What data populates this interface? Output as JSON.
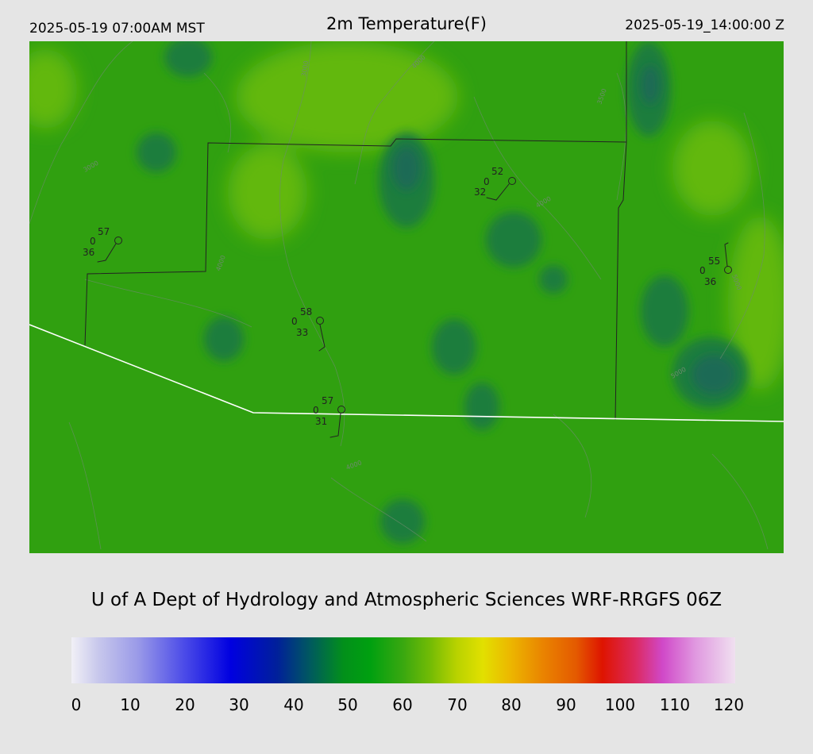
{
  "header": {
    "local_time": "2025-05-19 07:00AM MST",
    "title": "2m Temperature(F)",
    "utc_time": "2025-05-19_14:00:00 Z"
  },
  "credit": "U of A Dept of Hydrology and Atmospheric Sciences WRF-RRGFS 06Z",
  "colorbar": {
    "ticks": [
      "0",
      "10",
      "20",
      "30",
      "40",
      "50",
      "60",
      "70",
      "80",
      "90",
      "100",
      "110",
      "120"
    ]
  },
  "stations": [
    {
      "temp": "57",
      "wind": "0",
      "dew": "36"
    },
    {
      "temp": "58",
      "wind": "0",
      "dew": "33"
    },
    {
      "temp": "57",
      "wind": "0",
      "dew": "31"
    },
    {
      "temp": "52",
      "wind": "0",
      "dew": "32"
    },
    {
      "temp": "55",
      "wind": "0",
      "dew": "36"
    }
  ],
  "contours": {
    "c1": "3000",
    "c2": "3000",
    "c3": "4000",
    "c4": "4000",
    "c5": "3500",
    "c6": "4000",
    "c7": "5000",
    "c8": "4000",
    "c9": "5000"
  },
  "colors": {
    "background": "#e5e5e5",
    "field_base": "#30a010",
    "field_warm": "#62b80c",
    "field_cool": "#1f7d3c",
    "state_border": "#ffffff",
    "county_border": "#222222"
  }
}
